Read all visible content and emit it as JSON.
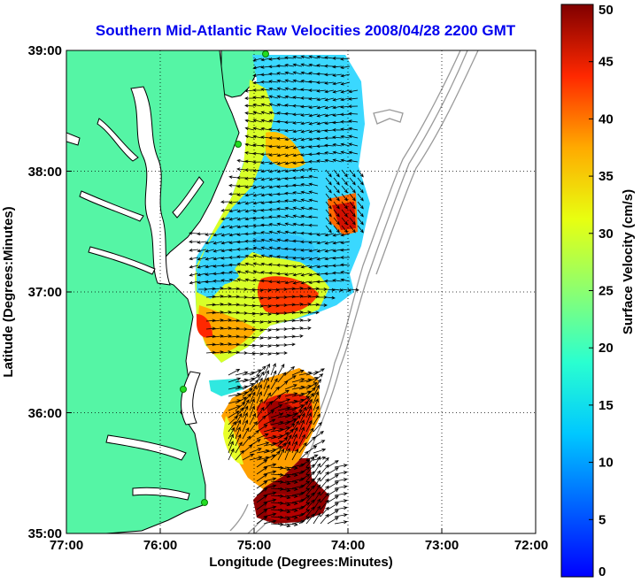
{
  "title": "Southern Mid-Atlantic Raw Velocities 2008/04/28 2200 GMT",
  "map": {
    "xlabel": "Longitude (Degrees:Minutes)",
    "ylabel": "Latitude (Degrees:Minutes)",
    "x_ticks": [
      "77:00",
      "76:00",
      "75:00",
      "74:00",
      "73:00",
      "72:00"
    ],
    "y_ticks": [
      "39:00",
      "38:00",
      "37:00",
      "36:00",
      "35:00"
    ],
    "lon_range": [
      -77,
      -72
    ],
    "lat_range": [
      35,
      39
    ],
    "grid": "dotted",
    "colors": {
      "land": "#55f5a5",
      "water": "#ffffff",
      "coast": "#000000",
      "bathymetry": "#9a9a9a",
      "stations": "#22dd22"
    }
  },
  "colorbar": {
    "label": "Surface Velocity (cm/s)",
    "ticks": [
      "0",
      "5",
      "10",
      "15",
      "20",
      "25",
      "30",
      "35",
      "40",
      "45",
      "50"
    ],
    "range": [
      0,
      50
    ]
  }
}
